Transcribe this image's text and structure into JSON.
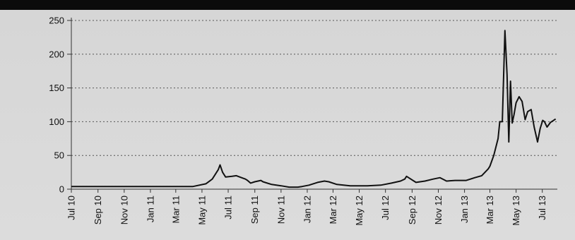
{
  "chart_data": {
    "type": "line",
    "title": "",
    "xlabel": "",
    "ylabel": "",
    "ylim": [
      0,
      250
    ],
    "yticks": [
      0,
      50,
      100,
      150,
      200,
      250
    ],
    "xlim": [
      "2010-07-01",
      "2013-08-05"
    ],
    "xtick_labels": [
      "Jul 10",
      "Sep 10",
      "Nov 10",
      "Jan 11",
      "Mar 11",
      "May 11",
      "Jul 11",
      "Sep 11",
      "Nov 11",
      "Jan 12",
      "Mar 12",
      "May 12",
      "Jul 12",
      "Sep 12",
      "Nov 12",
      "Jan 13",
      "Mar 13",
      "May 13",
      "Jul 13"
    ],
    "xtick_dates": [
      "2010-07-01",
      "2010-09-01",
      "2010-11-01",
      "2011-01-01",
      "2011-03-01",
      "2011-05-01",
      "2011-07-01",
      "2011-09-01",
      "2011-11-01",
      "2012-01-01",
      "2012-03-01",
      "2012-05-01",
      "2012-07-01",
      "2012-09-01",
      "2012-11-01",
      "2013-01-01",
      "2013-03-01",
      "2013-05-01",
      "2013-07-01"
    ],
    "grid": "horizontal-dotted",
    "legend": "none",
    "line_color": "#111111",
    "series": [
      {
        "x": [
          "2010-07-01",
          "2011-03-01",
          "2011-04-10",
          "2011-05-10",
          "2011-05-25",
          "2011-06-08",
          "2011-06-12",
          "2011-06-18",
          "2011-06-25",
          "2011-07-10",
          "2011-07-20",
          "2011-08-01",
          "2011-08-10",
          "2011-08-15",
          "2011-08-22",
          "2011-09-01",
          "2011-09-15",
          "2011-09-20",
          "2011-10-10",
          "2011-11-01",
          "2011-11-20",
          "2011-12-10",
          "2011-12-20",
          "2012-01-05",
          "2012-01-25",
          "2012-02-10",
          "2012-02-20",
          "2012-03-10",
          "2012-04-10",
          "2012-05-20",
          "2012-06-20",
          "2012-07-15",
          "2012-08-05",
          "2012-08-15",
          "2012-08-19",
          "2012-09-10",
          "2012-10-01",
          "2012-10-20",
          "2012-11-05",
          "2012-11-20",
          "2012-12-10",
          "2013-01-05",
          "2013-01-25",
          "2013-02-10",
          "2013-02-25",
          "2013-03-01",
          "2013-03-10",
          "2013-03-20",
          "2013-03-24",
          "2013-03-30",
          "2013-04-05",
          "2013-04-10",
          "2013-04-14",
          "2013-04-18",
          "2013-04-22",
          "2013-04-26",
          "2013-05-01",
          "2013-05-08",
          "2013-05-15",
          "2013-05-22",
          "2013-05-28",
          "2013-06-05",
          "2013-06-12",
          "2013-06-20",
          "2013-06-26",
          "2013-07-02",
          "2013-07-06",
          "2013-07-12",
          "2013-07-20",
          "2013-08-01"
        ],
        "values": [
          4,
          4,
          4,
          8,
          15,
          29,
          36,
          25,
          18,
          19,
          20,
          17,
          15,
          13,
          9,
          11,
          13,
          11,
          7,
          5,
          3,
          3,
          4,
          6,
          10,
          12,
          11,
          7,
          5,
          5,
          6,
          9,
          12,
          15,
          19,
          10,
          12,
          15,
          17,
          12,
          13,
          13,
          17,
          20,
          30,
          34,
          50,
          75,
          100,
          100,
          235,
          170,
          70,
          160,
          98,
          110,
          128,
          137,
          130,
          103,
          115,
          118,
          92,
          70,
          90,
          102,
          100,
          92,
          99,
          104
        ]
      }
    ]
  }
}
